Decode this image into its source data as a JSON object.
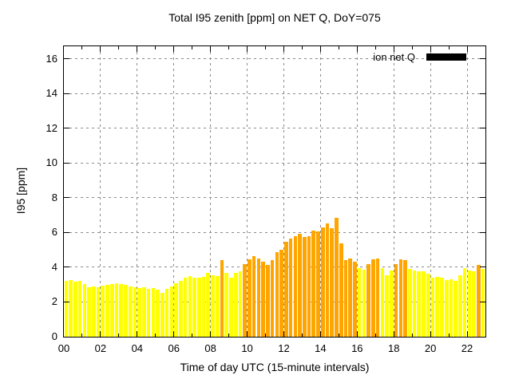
{
  "chart_data": {
    "type": "bar",
    "title": "Total I95 zenith [ppm] on NET Q, DoY=075",
    "xlabel": "Time of day UTC (15-minute intervals)",
    "ylabel": "I95 [ppm]",
    "legend": {
      "label": "ion net Q",
      "swatch_color": "#000000",
      "position": "top-right-inside"
    },
    "grid": true,
    "xlim_hours": [
      0,
      23
    ],
    "ylim": [
      0,
      16.73
    ],
    "yticks": [
      0,
      2,
      4,
      6,
      8,
      10,
      12,
      14,
      16
    ],
    "xtick_labels": [
      "00",
      "02",
      "04",
      "06",
      "08",
      "10",
      "12",
      "14",
      "16",
      "18",
      "20",
      "22"
    ],
    "minor_xtick_every_hours": 1,
    "interval_minutes": 15,
    "colors": {
      "yellow": "#ffff00",
      "orange": "#ffa500",
      "grid": "#8a8a8a",
      "axis": "#000000"
    },
    "color_rule": "orange when I95 > 4.0 ppm, else yellow",
    "points": [
      [
        "00:00",
        3.2,
        "y"
      ],
      [
        "00:15",
        3.25,
        "y"
      ],
      [
        "00:30",
        3.15,
        "y"
      ],
      [
        "00:45",
        3.2,
        "y"
      ],
      [
        "01:00",
        3.05,
        "y"
      ],
      [
        "01:15",
        2.85,
        "y"
      ],
      [
        "01:30",
        2.9,
        "y"
      ],
      [
        "01:45",
        2.85,
        "y"
      ],
      [
        "02:00",
        2.95,
        "y"
      ],
      [
        "02:15",
        3.0,
        "y"
      ],
      [
        "02:30",
        3.05,
        "y"
      ],
      [
        "02:45",
        3.1,
        "y"
      ],
      [
        "03:00",
        3.05,
        "y"
      ],
      [
        "03:15",
        3.0,
        "y"
      ],
      [
        "03:30",
        2.9,
        "y"
      ],
      [
        "03:45",
        2.85,
        "y"
      ],
      [
        "04:00",
        2.8,
        "y"
      ],
      [
        "04:15",
        2.85,
        "y"
      ],
      [
        "04:30",
        2.75,
        "y"
      ],
      [
        "04:45",
        2.8,
        "y"
      ],
      [
        "05:00",
        2.7,
        "y"
      ],
      [
        "05:15",
        2.55,
        "y"
      ],
      [
        "05:30",
        2.75,
        "y"
      ],
      [
        "05:45",
        2.9,
        "y"
      ],
      [
        "06:00",
        3.1,
        "y"
      ],
      [
        "06:15",
        3.2,
        "y"
      ],
      [
        "06:30",
        3.4,
        "y"
      ],
      [
        "06:45",
        3.5,
        "y"
      ],
      [
        "07:00",
        3.4,
        "y"
      ],
      [
        "07:15",
        3.4,
        "y"
      ],
      [
        "07:30",
        3.45,
        "y"
      ],
      [
        "07:45",
        3.7,
        "y"
      ],
      [
        "08:00",
        3.55,
        "y"
      ],
      [
        "08:15",
        3.5,
        "y"
      ],
      [
        "08:30",
        4.4,
        "o"
      ],
      [
        "08:45",
        3.7,
        "y"
      ],
      [
        "09:00",
        3.4,
        "y"
      ],
      [
        "09:15",
        3.7,
        "y"
      ],
      [
        "09:30",
        3.75,
        "y"
      ],
      [
        "09:45",
        4.2,
        "o"
      ],
      [
        "10:00",
        4.45,
        "o"
      ],
      [
        "10:15",
        4.65,
        "o"
      ],
      [
        "10:30",
        4.5,
        "o"
      ],
      [
        "10:45",
        4.3,
        "o"
      ],
      [
        "11:00",
        4.15,
        "o"
      ],
      [
        "11:15",
        4.4,
        "o"
      ],
      [
        "11:30",
        4.85,
        "o"
      ],
      [
        "11:45",
        5.0,
        "o"
      ],
      [
        "12:00",
        5.45,
        "o"
      ],
      [
        "12:15",
        5.65,
        "o"
      ],
      [
        "12:30",
        5.8,
        "o"
      ],
      [
        "12:45",
        5.95,
        "o"
      ],
      [
        "13:00",
        5.75,
        "o"
      ],
      [
        "13:15",
        5.8,
        "o"
      ],
      [
        "13:30",
        6.1,
        "o"
      ],
      [
        "13:45",
        6.05,
        "o"
      ],
      [
        "14:00",
        6.3,
        "o"
      ],
      [
        "14:15",
        6.55,
        "o"
      ],
      [
        "14:30",
        6.25,
        "o"
      ],
      [
        "14:45",
        6.85,
        "o"
      ],
      [
        "15:00",
        5.4,
        "o"
      ],
      [
        "15:15",
        4.4,
        "o"
      ],
      [
        "15:30",
        4.5,
        "o"
      ],
      [
        "15:45",
        4.3,
        "o"
      ],
      [
        "16:00",
        3.95,
        "y"
      ],
      [
        "16:15",
        3.85,
        "y"
      ],
      [
        "16:30",
        4.2,
        "o"
      ],
      [
        "16:45",
        4.45,
        "o"
      ],
      [
        "17:00",
        4.5,
        "o"
      ],
      [
        "17:15",
        3.95,
        "y"
      ],
      [
        "17:30",
        3.55,
        "y"
      ],
      [
        "17:45",
        3.8,
        "y"
      ],
      [
        "18:00",
        4.2,
        "o"
      ],
      [
        "18:15",
        4.45,
        "o"
      ],
      [
        "18:30",
        4.4,
        "o"
      ],
      [
        "18:45",
        3.9,
        "y"
      ],
      [
        "19:00",
        3.8,
        "y"
      ],
      [
        "19:15",
        3.75,
        "y"
      ],
      [
        "19:30",
        3.75,
        "y"
      ],
      [
        "19:45",
        3.65,
        "y"
      ],
      [
        "20:00",
        3.4,
        "y"
      ],
      [
        "20:15",
        3.45,
        "y"
      ],
      [
        "20:30",
        3.4,
        "y"
      ],
      [
        "20:45",
        3.25,
        "y"
      ],
      [
        "21:00",
        3.3,
        "y"
      ],
      [
        "21:15",
        3.2,
        "y"
      ],
      [
        "21:30",
        3.55,
        "y"
      ],
      [
        "21:45",
        3.95,
        "y"
      ],
      [
        "22:00",
        3.8,
        "y"
      ],
      [
        "22:15",
        3.75,
        "y"
      ],
      [
        "22:30",
        4.15,
        "o"
      ],
      [
        "22:45",
        3.9,
        "y"
      ]
    ]
  }
}
